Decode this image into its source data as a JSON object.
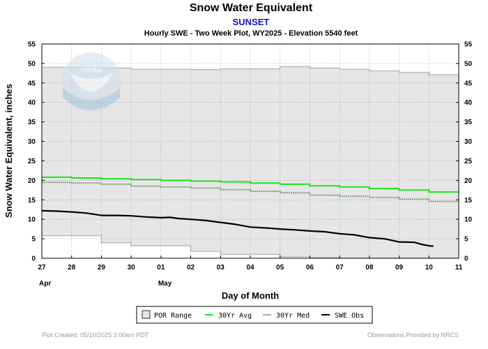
{
  "chart_data": {
    "type": "line",
    "title": "Snow Water Equivalent",
    "subtitle": "SUNSET",
    "description": "Hourly SWE - Two Week Plot, WY2025 -  Elevation 5540 feet",
    "ylabel": "Snow Water Equivalent, inches",
    "xlabel": "Day of Month",
    "ylim": [
      0,
      55
    ],
    "yticks": [
      0,
      5,
      10,
      15,
      20,
      25,
      30,
      35,
      40,
      45,
      50,
      55
    ],
    "xlim": [
      0,
      14
    ],
    "xticks": [
      "27",
      "28",
      "29",
      "30",
      "01",
      "02",
      "03",
      "04",
      "05",
      "06",
      "07",
      "08",
      "09",
      "10",
      "11"
    ],
    "month_labels": [
      {
        "x": 0,
        "label": "Apr"
      },
      {
        "x": 4,
        "label": "May"
      }
    ],
    "grid": true,
    "legend_position": "bottom",
    "legend": [
      {
        "key": "por",
        "label": "POR Range"
      },
      {
        "key": "avg",
        "label": "30Yr Avg"
      },
      {
        "key": "med",
        "label": "30Yr Med"
      },
      {
        "key": "obs",
        "label": "SWE Obs"
      }
    ],
    "colors": {
      "por_fill": "#e6e6e6",
      "por_edge": "#bdbdbd",
      "avg": "#1ee61e",
      "med": "#7fa07f",
      "obs": "#000000"
    },
    "series": [
      {
        "key": "por_max",
        "steps": [
          [
            0,
            49.0
          ],
          [
            2,
            48.8
          ],
          [
            3,
            48.5
          ],
          [
            5,
            48.4
          ],
          [
            6,
            48.6
          ],
          [
            8,
            49.2
          ],
          [
            9,
            48.8
          ],
          [
            10,
            48.5
          ],
          [
            11,
            48.1
          ],
          [
            12,
            47.7
          ],
          [
            13,
            47.1
          ],
          [
            14,
            47.1
          ]
        ]
      },
      {
        "key": "por_min",
        "steps": [
          [
            0,
            5.8
          ],
          [
            2,
            4.0
          ],
          [
            3,
            3.2
          ],
          [
            5,
            1.8
          ],
          [
            6,
            1.0
          ],
          [
            8,
            0.4
          ],
          [
            9,
            0.2
          ],
          [
            10,
            0.0
          ],
          [
            14,
            0.0
          ]
        ]
      },
      {
        "name": "30Yr Avg",
        "key": "avg",
        "steps": [
          [
            0,
            20.8
          ],
          [
            1,
            20.6
          ],
          [
            2,
            20.4
          ],
          [
            3,
            20.2
          ],
          [
            4,
            20.0
          ],
          [
            5,
            19.8
          ],
          [
            6,
            19.6
          ],
          [
            7,
            19.3
          ],
          [
            8,
            19.0
          ],
          [
            9,
            18.6
          ],
          [
            10,
            18.3
          ],
          [
            11,
            17.9
          ],
          [
            12,
            17.5
          ],
          [
            13,
            17.0
          ],
          [
            14,
            17.0
          ]
        ]
      },
      {
        "name": "30Yr Med",
        "key": "med",
        "steps": [
          [
            0,
            19.5
          ],
          [
            1,
            19.3
          ],
          [
            2,
            19.0
          ],
          [
            3,
            18.5
          ],
          [
            4,
            18.3
          ],
          [
            5,
            18.0
          ],
          [
            6,
            17.6
          ],
          [
            7,
            17.2
          ],
          [
            8,
            16.8
          ],
          [
            9,
            16.2
          ],
          [
            10,
            15.9
          ],
          [
            11,
            15.6
          ],
          [
            12,
            15.2
          ],
          [
            13,
            14.6
          ],
          [
            14,
            14.6
          ]
        ]
      },
      {
        "name": "SWE Obs",
        "key": "obs",
        "points": [
          [
            0,
            12.2
          ],
          [
            0.5,
            12.1
          ],
          [
            1,
            11.9
          ],
          [
            1.5,
            11.6
          ],
          [
            2,
            11.0
          ],
          [
            2.5,
            11.0
          ],
          [
            3,
            10.9
          ],
          [
            3.5,
            10.6
          ],
          [
            4,
            10.4
          ],
          [
            4.3,
            10.5
          ],
          [
            4.6,
            10.2
          ],
          [
            5,
            10.0
          ],
          [
            5.5,
            9.7
          ],
          [
            6,
            9.2
          ],
          [
            6.5,
            8.7
          ],
          [
            7,
            8.0
          ],
          [
            7.5,
            7.8
          ],
          [
            8,
            7.5
          ],
          [
            8.5,
            7.3
          ],
          [
            9,
            7.0
          ],
          [
            9.5,
            6.8
          ],
          [
            10,
            6.3
          ],
          [
            10.5,
            6.0
          ],
          [
            11,
            5.3
          ],
          [
            11.5,
            5.0
          ],
          [
            12,
            4.2
          ],
          [
            12.5,
            4.1
          ],
          [
            12.8,
            3.5
          ],
          [
            13,
            3.2
          ],
          [
            13.15,
            3.1
          ]
        ]
      }
    ]
  },
  "footer": {
    "created": "Plot Created: 05/10/2025 3:00am PDT",
    "provided": "Observations Provided by NRCS"
  }
}
